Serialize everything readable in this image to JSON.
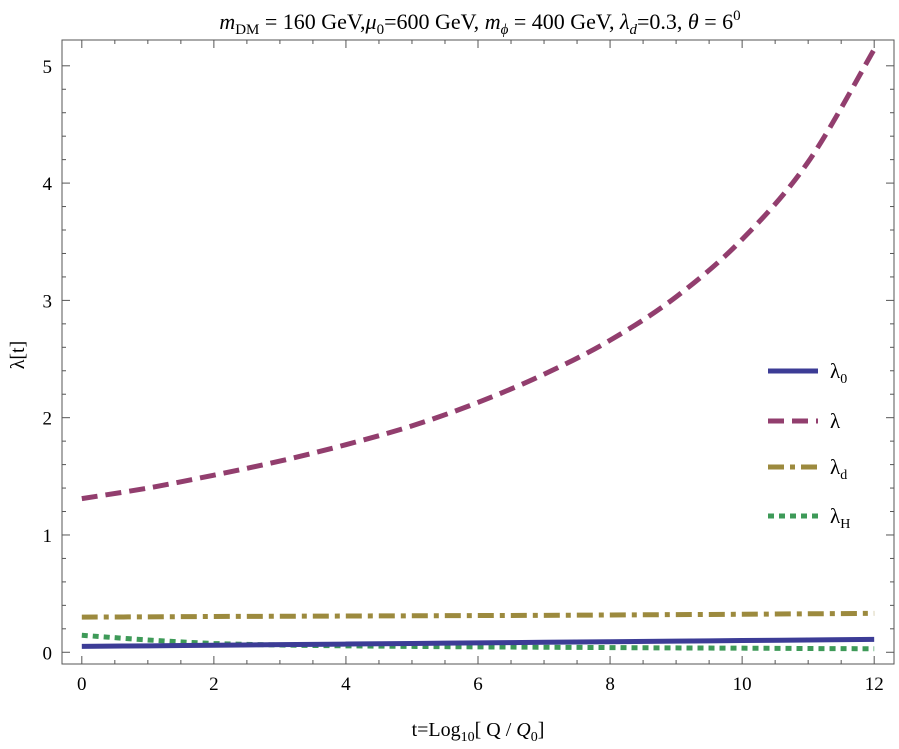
{
  "chart_data": {
    "type": "line",
    "title": {
      "m_label": "m",
      "m_sub": "DM",
      "m_value": " = 160 GeV,",
      "mu_label": "μ",
      "mu_sub": "0",
      "mu_value": "=600 GeV, ",
      "mphi_label": "m",
      "mphi_sub": "ϕ",
      "mphi_value": " = 400 GeV, ",
      "lamd_label": "λ",
      "lamd_sub": "d",
      "lamd_value": "=0.3, ",
      "theta_label": "θ",
      "theta_value": " = 6",
      "theta_sup": "0"
    },
    "xlabel": {
      "prefix": "t=Log",
      "sub": "10",
      "middle": "[ Q / ",
      "q_label": "Q",
      "q_sub": "0",
      "suffix": "]"
    },
    "ylabel": "λ[t]",
    "xlim": [
      -0.3,
      12.3
    ],
    "ylim": [
      -0.1,
      5.22
    ],
    "x_ticks": [
      0,
      2,
      4,
      6,
      8,
      10,
      12
    ],
    "y_ticks": [
      0,
      1,
      2,
      3,
      4,
      5
    ],
    "legend_placement": "right",
    "series": [
      {
        "key": "lambda0",
        "legend_main": "λ",
        "legend_sub": "0",
        "color": "#3c3c96",
        "style": "solid",
        "x": [
          0,
          1,
          2,
          3,
          4,
          5,
          6,
          7,
          8,
          9,
          10,
          11,
          12
        ],
        "y": [
          0.05,
          0.055,
          0.06,
          0.065,
          0.07,
          0.075,
          0.08,
          0.085,
          0.09,
          0.095,
          0.1,
          0.105,
          0.11
        ]
      },
      {
        "key": "lambda",
        "legend_main": "λ",
        "legend_sub": "",
        "color": "#923e6e",
        "style": "dashed",
        "x": [
          0,
          1,
          2,
          3,
          4,
          5,
          6,
          7,
          8,
          9,
          10,
          11,
          12
        ],
        "y": [
          1.31,
          1.4,
          1.51,
          1.63,
          1.77,
          1.93,
          2.13,
          2.37,
          2.66,
          3.03,
          3.52,
          4.18,
          5.14
        ]
      },
      {
        "key": "lambdad",
        "legend_main": "λ",
        "legend_sub": "d",
        "color": "#9c8a3e",
        "style": "dashdot",
        "x": [
          0,
          1,
          2,
          3,
          4,
          5,
          6,
          7,
          8,
          9,
          10,
          11,
          12
        ],
        "y": [
          0.3,
          0.302,
          0.305,
          0.307,
          0.309,
          0.311,
          0.313,
          0.315,
          0.318,
          0.321,
          0.324,
          0.328,
          0.332
        ]
      },
      {
        "key": "lambdaH",
        "legend_main": "λ",
        "legend_sub": "H",
        "color": "#3e9a58",
        "style": "dotted",
        "x": [
          0,
          1,
          2,
          3,
          4,
          5,
          6,
          7,
          8,
          9,
          10,
          11,
          12
        ],
        "y": [
          0.145,
          0.105,
          0.075,
          0.062,
          0.055,
          0.05,
          0.046,
          0.043,
          0.04,
          0.037,
          0.035,
          0.032,
          0.03
        ]
      }
    ]
  }
}
